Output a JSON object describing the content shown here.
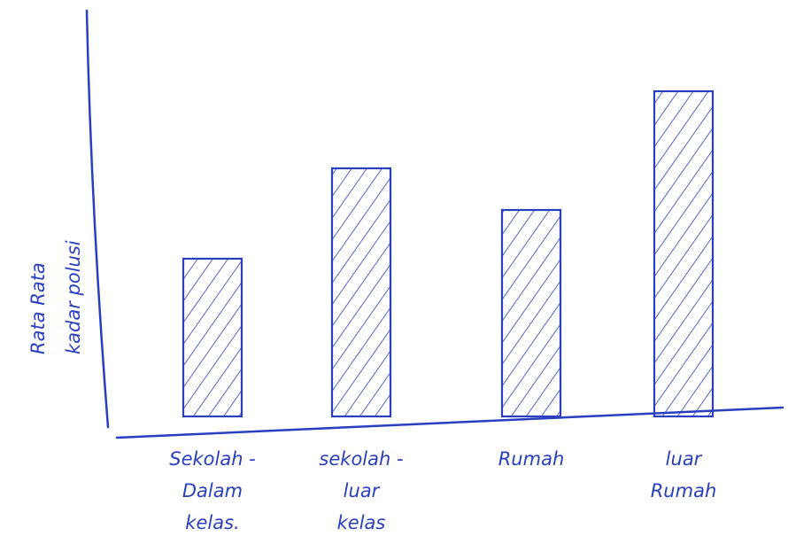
{
  "chart_data": {
    "type": "bar",
    "y_label": "Rata Rata\nkadar polusi",
    "categories": [
      "Sekolah -\nDalam\nkelas.",
      "sekolah -\nluar\nkelas",
      "Rumah",
      "luar\nRumah"
    ],
    "values": [
      178,
      280,
      233,
      367
    ],
    "color": "#2a3fbf",
    "ylim": [
      0,
      460
    ]
  }
}
